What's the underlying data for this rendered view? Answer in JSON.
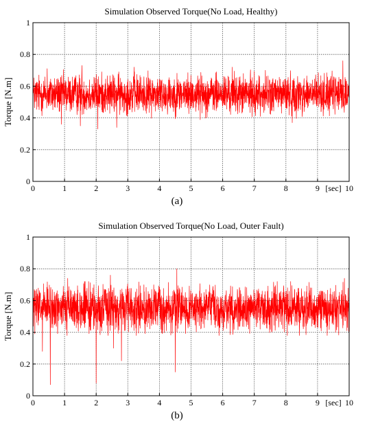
{
  "figure": {
    "colors": {
      "signal": "#ff0000",
      "axes": "#000000",
      "grid": "#555555",
      "background": "#ffffff"
    }
  },
  "chart_data": [
    {
      "id": "a",
      "type": "line",
      "title": "Simulation Observed Torque(No Load, Healthy)",
      "xlabel": "",
      "ylabel": "Torque [N.m]",
      "x_unit_label": "[sec]",
      "caption": "(a)",
      "xlim": [
        0,
        10
      ],
      "ylim": [
        0,
        1
      ],
      "xticks": [
        0,
        1,
        2,
        3,
        4,
        5,
        6,
        7,
        8,
        9,
        10
      ],
      "xtick_labels": [
        "0",
        "1",
        "2",
        "3",
        "4",
        "5",
        "6",
        "7",
        "8",
        "9",
        "10"
      ],
      "yticks": [
        0,
        0.2,
        0.4,
        0.6,
        0.8,
        1
      ],
      "ytick_labels": [
        "0",
        "0.2",
        "0.4",
        "0.6",
        "0.8",
        "1"
      ],
      "grid": true,
      "series": [
        {
          "noise_mean": 0.55,
          "noise_spread": 0.06,
          "x_step": 0.005,
          "peaks": [
            {
              "x": 9.8,
              "y": 0.76
            },
            {
              "x": 1.55,
              "y": 0.73
            },
            {
              "x": 3.2,
              "y": 0.72
            },
            {
              "x": 6.3,
              "y": 0.72
            },
            {
              "x": 0.45,
              "y": 0.71
            },
            {
              "x": 1.5,
              "y": 0.35
            },
            {
              "x": 2.05,
              "y": 0.33
            },
            {
              "x": 2.65,
              "y": 0.34
            },
            {
              "x": 0.9,
              "y": 0.36
            },
            {
              "x": 8.2,
              "y": 0.37
            }
          ]
        }
      ]
    },
    {
      "id": "b",
      "type": "line",
      "title": "Simulation Observed Torque(No Load, Outer Fault)",
      "xlabel": "",
      "ylabel": "Torque [N.m]",
      "x_unit_label": "[sec]",
      "caption": "(b)",
      "xlim": [
        0,
        10
      ],
      "ylim": [
        0,
        1
      ],
      "xticks": [
        0,
        1,
        2,
        3,
        4,
        5,
        6,
        7,
        8,
        9,
        10
      ],
      "xtick_labels": [
        "0",
        "1",
        "2",
        "3",
        "4",
        "5",
        "6",
        "7",
        "8",
        "9",
        "10"
      ],
      "yticks": [
        0,
        0.2,
        0.4,
        0.6,
        0.8,
        1
      ],
      "ytick_labels": [
        "0",
        "0.2",
        "0.4",
        "0.6",
        "0.8",
        "1"
      ],
      "grid": true,
      "series": [
        {
          "noise_mean": 0.55,
          "noise_spread": 0.07,
          "x_step": 0.005,
          "peaks": [
            {
              "x": 0.55,
              "y": 0.07
            },
            {
              "x": 2.0,
              "y": 0.08
            },
            {
              "x": 4.5,
              "y": 0.15
            },
            {
              "x": 2.8,
              "y": 0.22
            },
            {
              "x": 0.3,
              "y": 0.28
            },
            {
              "x": 2.55,
              "y": 0.3
            },
            {
              "x": 4.55,
              "y": 0.8
            },
            {
              "x": 2.45,
              "y": 0.76
            },
            {
              "x": 1.1,
              "y": 0.74
            },
            {
              "x": 9.85,
              "y": 0.74
            }
          ]
        }
      ]
    }
  ]
}
